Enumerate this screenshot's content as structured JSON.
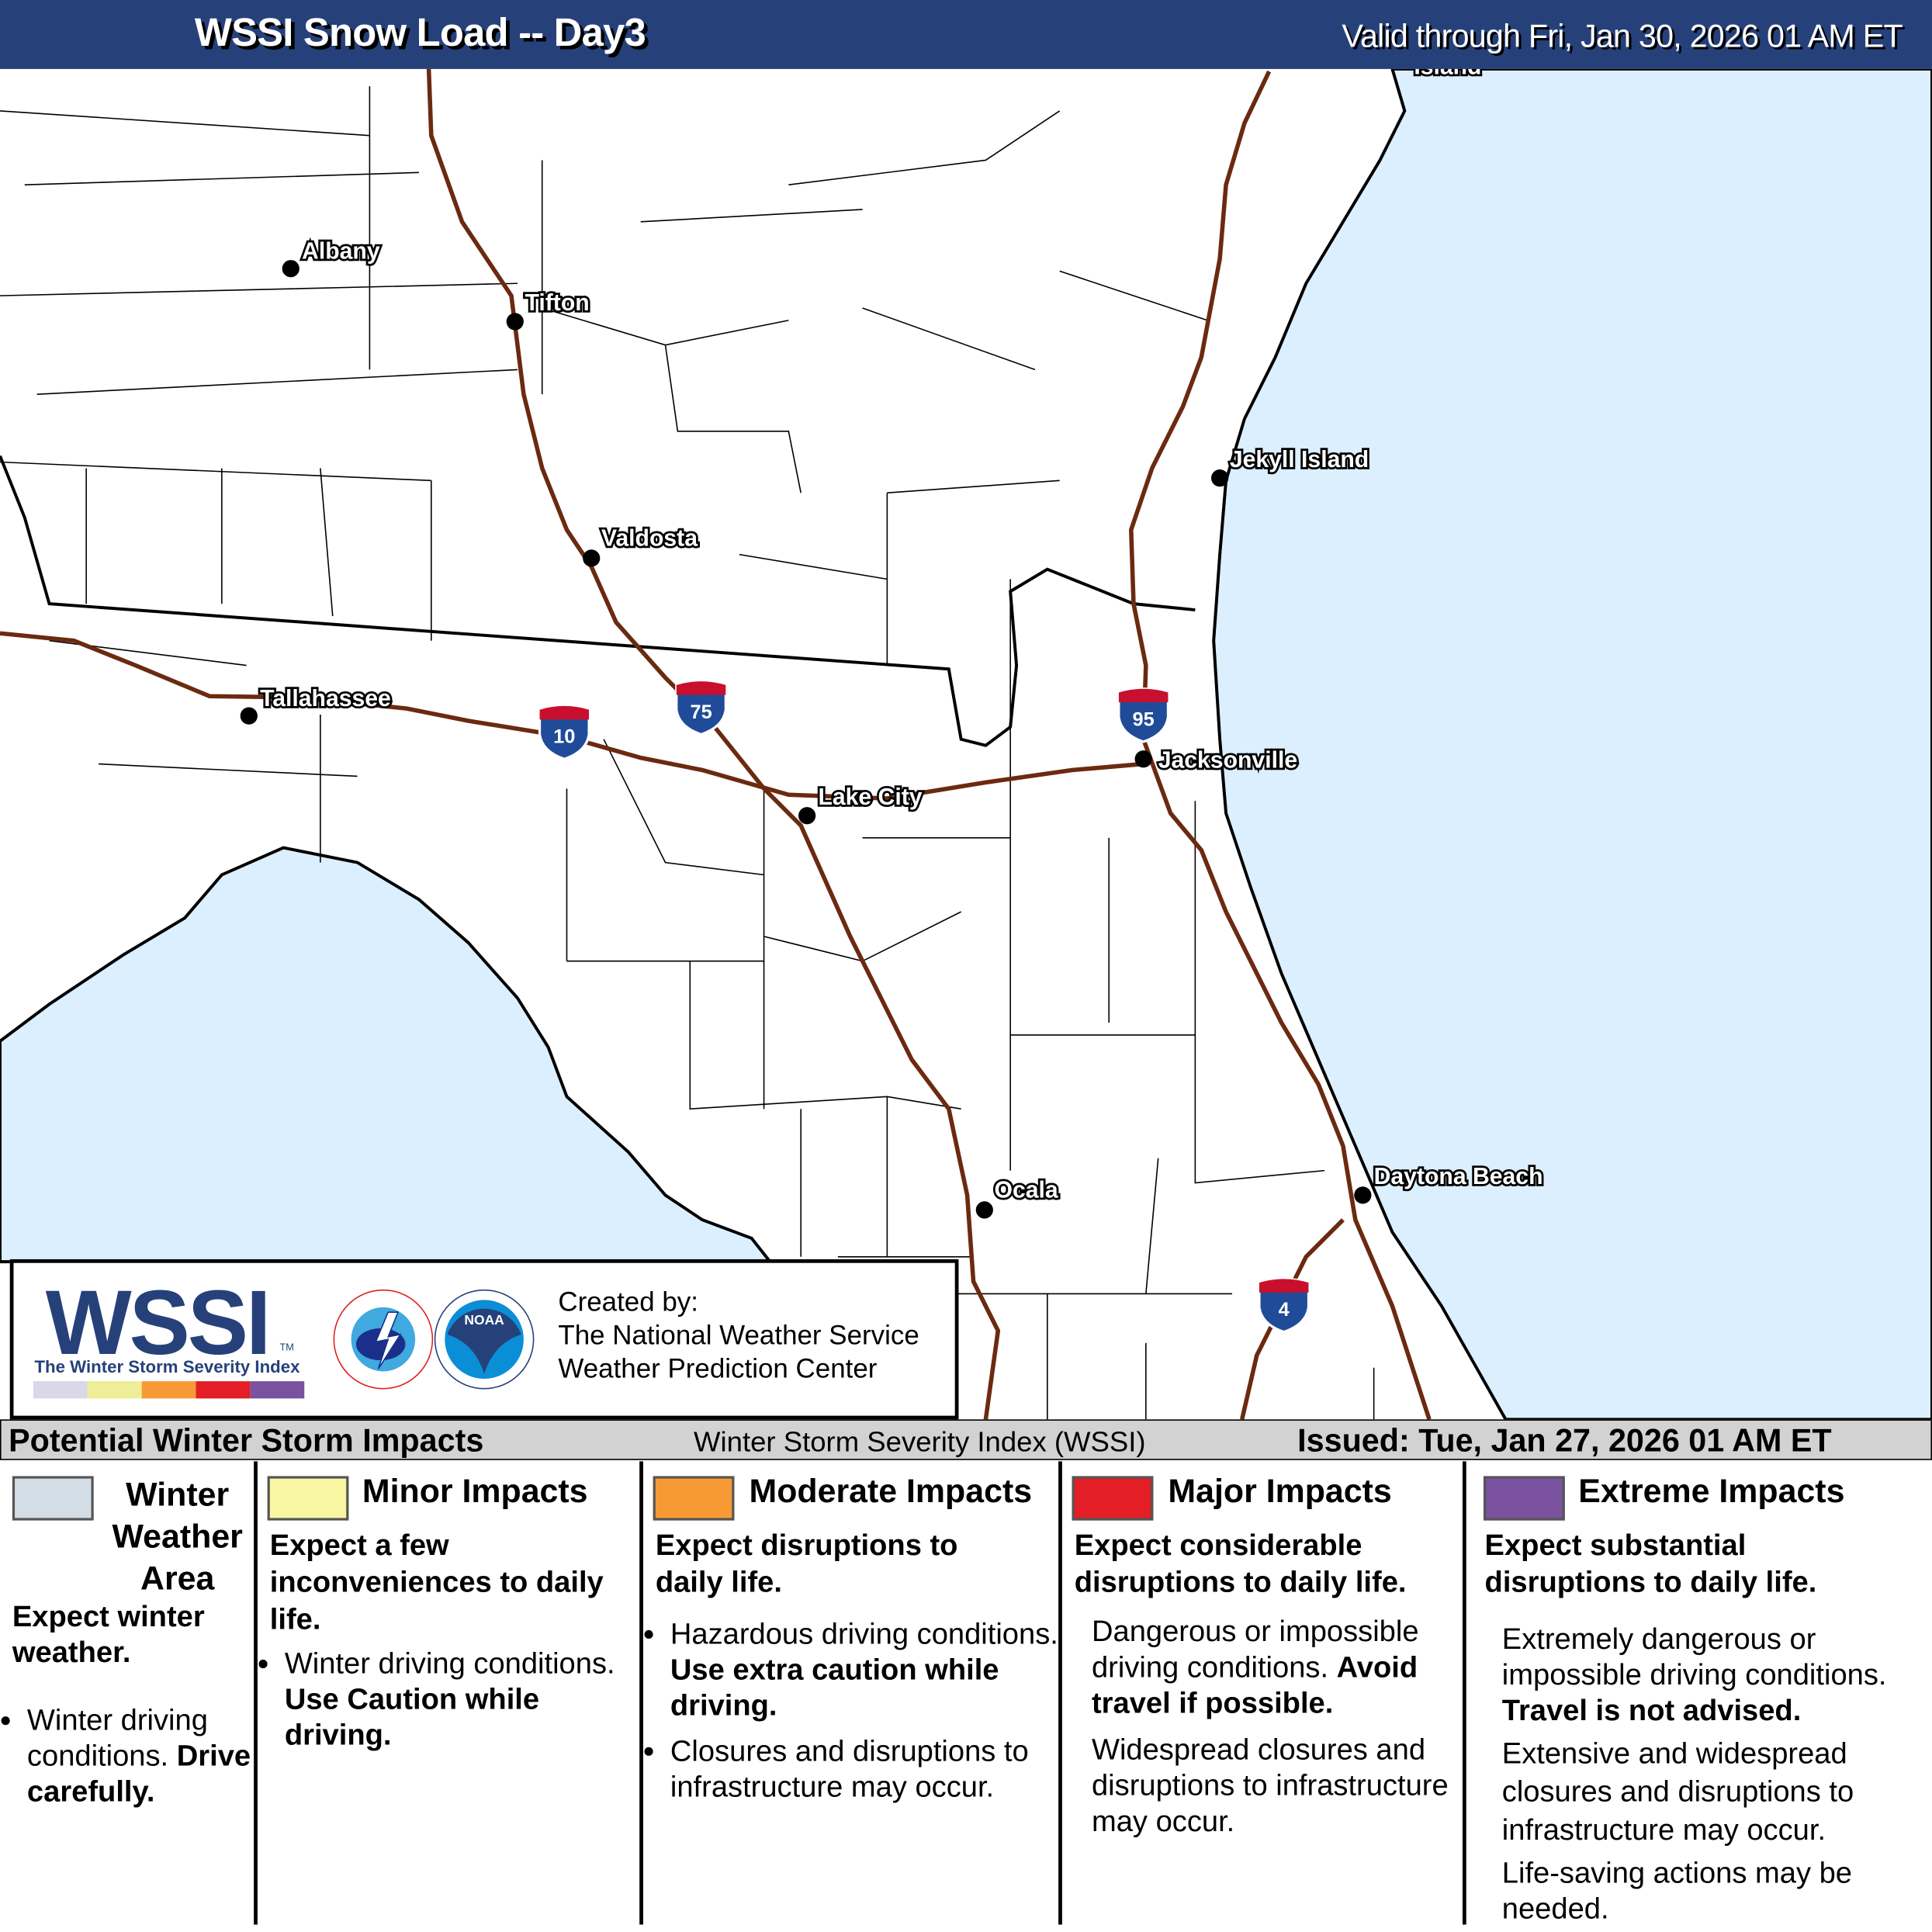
{
  "header": {
    "title": "WSSI Snow Load -- Day3",
    "valid": "Valid through Fri, Jan 30, 2026 01 AM ET"
  },
  "map": {
    "colors": {
      "land": "#ffffff",
      "water": "#dcefff",
      "interstate": "#6b2a10",
      "border": "#000000"
    },
    "cities": [
      "Albany",
      "Tifton",
      "Valdosta",
      "Tallahassee",
      "Lake City",
      "Jacksonville",
      "Jekyll Island",
      "Daytona Beach",
      "Ocala",
      "Island"
    ],
    "interstates": [
      "10",
      "75",
      "95",
      "4"
    ]
  },
  "logo": {
    "wordmark": "WSSI",
    "tm": "TM",
    "subtitle": "The Winter Storm Severity Index",
    "colors": [
      "#d8d8e8",
      "#eeee99",
      "#f79a35",
      "#e31e26",
      "#7a52a0"
    ],
    "credit": [
      "Created by:",
      "The National Weather Service",
      "Weather Prediction Center"
    ],
    "nws_logo": "NATIONAL WEATHER SERVICE",
    "noaa_logo": "NOAA"
  },
  "legend": {
    "title": "Potential Winter Storm Impacts",
    "index_name": "Winter Storm Severity Index (WSSI)",
    "issued": "Issued: Tue, Jan 27, 2026 01 AM ET",
    "categories": [
      {
        "name": "Winter Weather Area",
        "color": "#d3dde6",
        "summary": "Expect winter weather.",
        "details": [
          "Winter driving conditions.",
          "Drive carefully."
        ]
      },
      {
        "name": "Minor Impacts",
        "color": "#f9f6a3",
        "summary": "Expect a few inconveniences to daily life.",
        "details": [
          "Winter driving conditions.",
          "Use Caution while driving."
        ]
      },
      {
        "name": "Moderate Impacts",
        "color": "#f79a35",
        "summary": "Expect disruptions to daily life.",
        "details": [
          "Hazardous driving conditions.",
          "Use extra caution while driving.",
          "Closures and disruptions to infrastructure may occur."
        ]
      },
      {
        "name": "Major Impacts",
        "color": "#e31e26",
        "summary": "Expect considerable disruptions to daily life.",
        "details": [
          "Dangerous or impossible driving conditions.",
          "Avoid travel if possible.",
          "Widespread closures and disruptions to infrastructure may occur."
        ]
      },
      {
        "name": "Extreme Impacts",
        "color": "#7a52a0",
        "summary": "Expect substantial disruptions to daily life.",
        "details": [
          "Extremely dangerous or impossible driving conditions.",
          "Travel is not advised.",
          "Extensive and widespread closures and disruptions to infrastructure may occur.",
          "Life-saving actions may be needed."
        ]
      }
    ]
  }
}
